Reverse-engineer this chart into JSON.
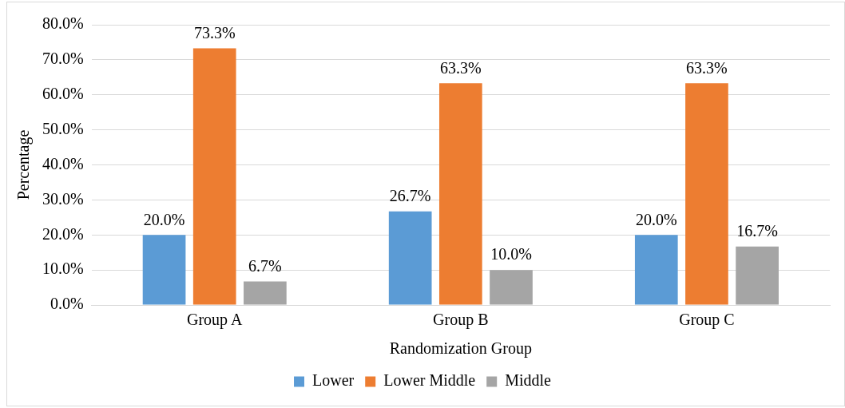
{
  "chart_data": {
    "type": "bar",
    "xlabel": "Randomization Group",
    "ylabel": "Percentage",
    "categories": [
      "Group A",
      "Group B",
      "Group C"
    ],
    "series": [
      {
        "name": "Lower",
        "color": "#5b9bd5",
        "values": [
          20.0,
          26.7,
          20.0
        ],
        "value_labels": [
          "20.0%",
          "26.7%",
          "20.0%"
        ]
      },
      {
        "name": "Lower Middle",
        "color": "#ed7d31",
        "values": [
          73.3,
          63.3,
          63.3
        ],
        "value_labels": [
          "73.3%",
          "63.3%",
          "63.3%"
        ]
      },
      {
        "name": "Middle",
        "color": "#a5a5a5",
        "values": [
          6.7,
          10.0,
          16.7
        ],
        "value_labels": [
          "6.7%",
          "10.0%",
          "16.7%"
        ]
      }
    ],
    "ylim": [
      0,
      80
    ],
    "yticks": [
      {
        "value": 0,
        "label": "0.0%"
      },
      {
        "value": 10,
        "label": "10.0%"
      },
      {
        "value": 20,
        "label": "20.0%"
      },
      {
        "value": 30,
        "label": "30.0%"
      },
      {
        "value": 40,
        "label": "40.0%"
      },
      {
        "value": 50,
        "label": "50.0%"
      },
      {
        "value": 60,
        "label": "60.0%"
      },
      {
        "value": 70,
        "label": "70.0%"
      },
      {
        "value": 80,
        "label": "80.0%"
      }
    ],
    "grid": "y",
    "legend": "bottom"
  }
}
